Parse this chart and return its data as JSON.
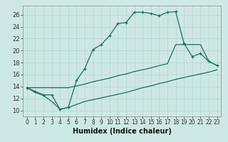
{
  "xlabel": "Humidex (Indice chaleur)",
  "background_color": "#cde8e4",
  "line_color": "#1a7060",
  "xlim": [
    -0.5,
    23.5
  ],
  "ylim": [
    9.0,
    27.5
  ],
  "yticks": [
    10,
    12,
    14,
    16,
    18,
    20,
    22,
    24,
    26
  ],
  "xticks": [
    0,
    1,
    2,
    3,
    4,
    5,
    6,
    7,
    8,
    9,
    10,
    11,
    12,
    13,
    14,
    15,
    16,
    17,
    18,
    19,
    20,
    21,
    22,
    23
  ],
  "main_y": [
    13.8,
    13.2,
    12.6,
    12.6,
    10.2,
    10.5,
    15.0,
    17.0,
    20.2,
    21.0,
    22.5,
    24.5,
    24.7,
    26.4,
    26.4,
    26.2,
    25.8,
    26.4,
    26.5,
    21.2,
    19.0,
    19.5,
    18.2,
    17.5
  ],
  "upper_y": [
    13.8,
    13.8,
    13.8,
    13.8,
    13.8,
    13.8,
    14.1,
    14.4,
    14.8,
    15.1,
    15.4,
    15.8,
    16.1,
    16.5,
    16.8,
    17.1,
    17.5,
    17.8,
    21.0,
    21.0,
    21.0,
    21.0,
    18.2,
    17.5
  ],
  "lower_y": [
    13.8,
    13.0,
    12.5,
    11.5,
    10.2,
    10.5,
    11.0,
    11.5,
    11.8,
    12.1,
    12.4,
    12.7,
    13.0,
    13.4,
    13.8,
    14.1,
    14.5,
    14.8,
    15.2,
    15.5,
    15.8,
    16.1,
    16.4,
    16.8
  ],
  "grid_color": "#b0d8d0",
  "tick_fontsize": 6,
  "xlabel_fontsize": 7
}
